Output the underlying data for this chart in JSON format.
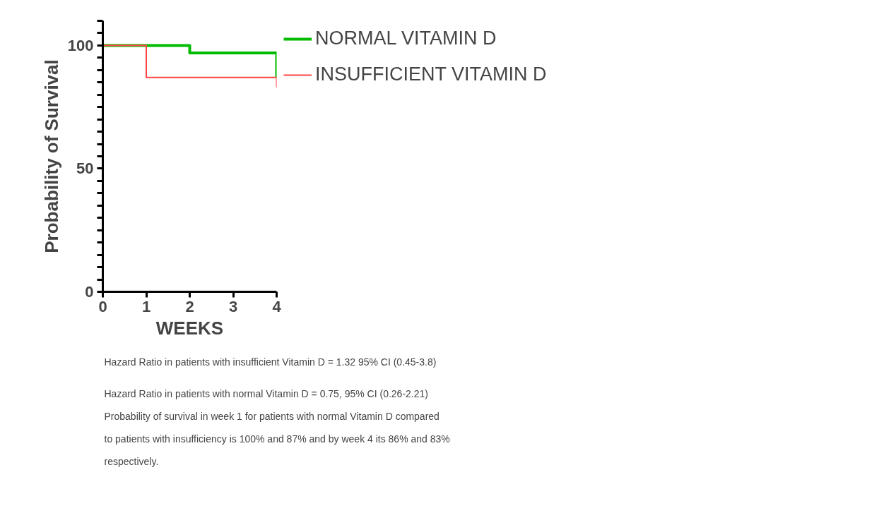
{
  "chart_data": {
    "type": "step",
    "xlabel": "WEEKS",
    "ylabel": "Probability of Survival",
    "xlim": [
      0,
      4
    ],
    "ylim": [
      0,
      110
    ],
    "xticks": [
      0,
      1,
      2,
      3,
      4
    ],
    "yticks": [
      0,
      {
        "value": 5,
        "label": null
      },
      {
        "value": 10,
        "label": null
      },
      {
        "value": 15,
        "label": null
      },
      {
        "value": 20,
        "label": null
      },
      {
        "value": 25,
        "label": null
      },
      {
        "value": 30,
        "label": null
      },
      {
        "value": 35,
        "label": null
      },
      {
        "value": 40,
        "label": null
      },
      {
        "value": 45,
        "label": null
      },
      50,
      {
        "value": 55,
        "label": null
      },
      {
        "value": 60,
        "label": null
      },
      {
        "value": 65,
        "label": null
      },
      {
        "value": 70,
        "label": null
      },
      {
        "value": 75,
        "label": null
      },
      {
        "value": 80,
        "label": null
      },
      {
        "value": 85,
        "label": null
      },
      {
        "value": 90,
        "label": null
      },
      {
        "value": 95,
        "label": null
      },
      100,
      {
        "value": 105,
        "label": null
      },
      {
        "value": 110,
        "label": null
      }
    ],
    "series": [
      {
        "name": "NORMAL VITAMIN D",
        "color": "#00bb00",
        "x": [
          0,
          2,
          4,
          4
        ],
        "values": [
          100,
          97,
          97,
          87
        ]
      },
      {
        "name": "INSUFFICIENT VITAMIN D",
        "color": "#ff4444",
        "x": [
          0,
          1,
          4,
          4
        ],
        "values": [
          100,
          87,
          87,
          83
        ]
      }
    ],
    "legend": "top right",
    "grid": false,
    "annotations": [
      "Hazard Ratio in patients with insufficient Vitamin D = 1.32 95% CI (0.45-3.8)",
      "Hazard Ratio in patients with  normal Vitamin D = 0.75, 95% CI (0.26-2.21)",
      "Probability of survival in week 1 for patients with normal Vitamin D compared",
      "to patients with insufficiency is 100% and 87% and by week 4 its 86%  and 83%",
      "respectively."
    ]
  }
}
